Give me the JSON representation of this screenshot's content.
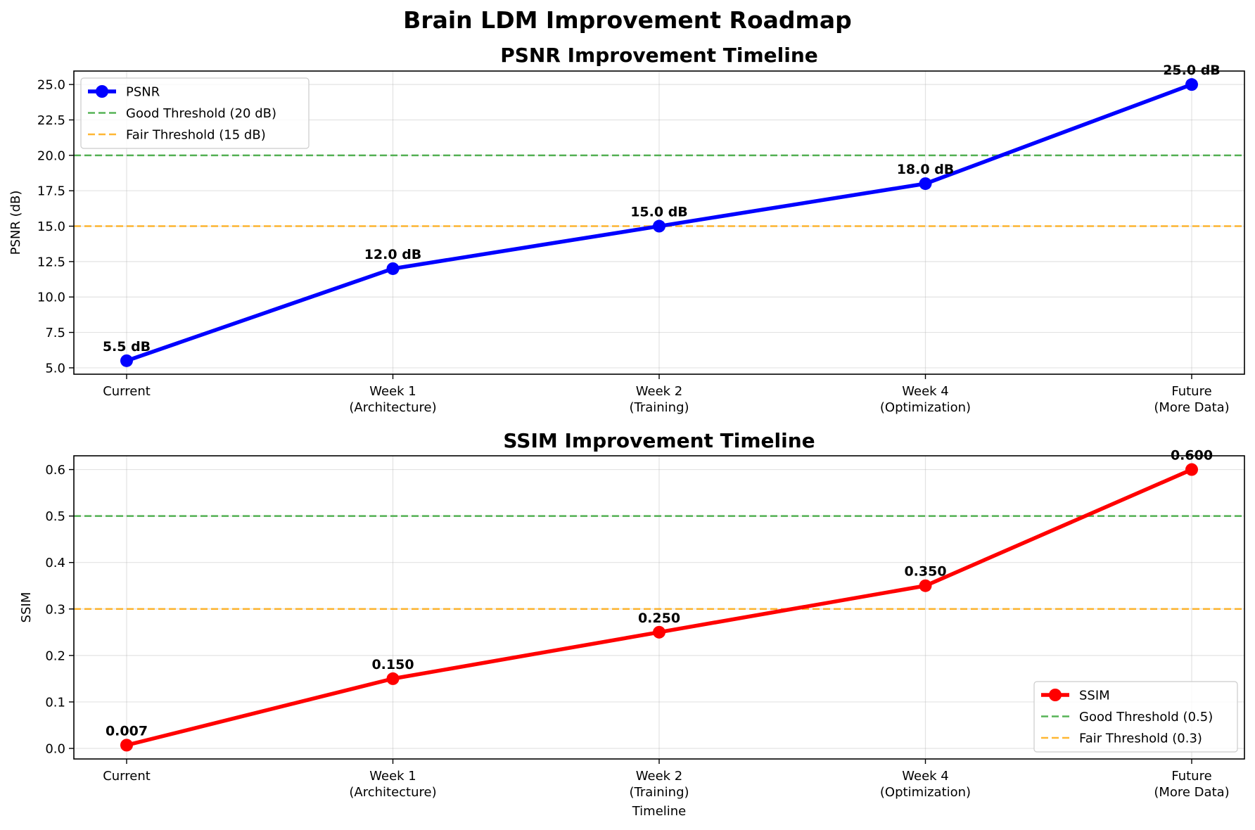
{
  "figure": {
    "title": "Brain LDM Improvement Roadmap"
  },
  "chart_data": [
    {
      "type": "line",
      "title": "PSNR Improvement Timeline",
      "xlabel": "",
      "ylabel": "PSNR (dB)",
      "categories": [
        "Current",
        "Week 1\n(Architecture)",
        "Week 2\n(Training)",
        "Week 4\n(Optimization)",
        "Future\n(More Data)"
      ],
      "ylim": [
        4.55,
        25.95
      ],
      "yticks": [
        5.0,
        7.5,
        10.0,
        12.5,
        15.0,
        17.5,
        20.0,
        22.5,
        25.0
      ],
      "ytick_labels": [
        "5.0",
        "7.5",
        "10.0",
        "12.5",
        "15.0",
        "17.5",
        "20.0",
        "22.5",
        "25.0"
      ],
      "grid": true,
      "series": [
        {
          "name": "PSNR",
          "values": [
            5.5,
            12.0,
            15.0,
            18.0,
            25.0
          ],
          "color": "#0000ff",
          "labels": [
            "5.5 dB",
            "12.0 dB",
            "15.0 dB",
            "18.0 dB",
            "25.0 dB"
          ]
        }
      ],
      "thresholds": [
        {
          "name": "Good Threshold (20 dB)",
          "value": 20,
          "color": "#2ca02c"
        },
        {
          "name": "Fair Threshold (15 dB)",
          "value": 15,
          "color": "#ffa500"
        }
      ],
      "legend": {
        "position": "top-left"
      }
    },
    {
      "type": "line",
      "title": "SSIM Improvement Timeline",
      "xlabel": "Timeline",
      "ylabel": "SSIM",
      "categories": [
        "Current",
        "Week 1\n(Architecture)",
        "Week 2\n(Training)",
        "Week 4\n(Optimization)",
        "Future\n(More Data)"
      ],
      "ylim": [
        -0.0227,
        0.6296
      ],
      "yticks": [
        0.0,
        0.1,
        0.2,
        0.3,
        0.4,
        0.5,
        0.6
      ],
      "ytick_labels": [
        "0.0",
        "0.1",
        "0.2",
        "0.3",
        "0.4",
        "0.5",
        "0.6"
      ],
      "grid": true,
      "series": [
        {
          "name": "SSIM",
          "values": [
            0.007,
            0.15,
            0.25,
            0.35,
            0.6
          ],
          "color": "#ff0000",
          "labels": [
            "0.007",
            "0.150",
            "0.250",
            "0.350",
            "0.600"
          ]
        }
      ],
      "thresholds": [
        {
          "name": "Good Threshold (0.5)",
          "value": 0.5,
          "color": "#2ca02c"
        },
        {
          "name": "Fair Threshold (0.3)",
          "value": 0.3,
          "color": "#ffa500"
        }
      ],
      "legend": {
        "position": "bottom-right"
      }
    }
  ]
}
